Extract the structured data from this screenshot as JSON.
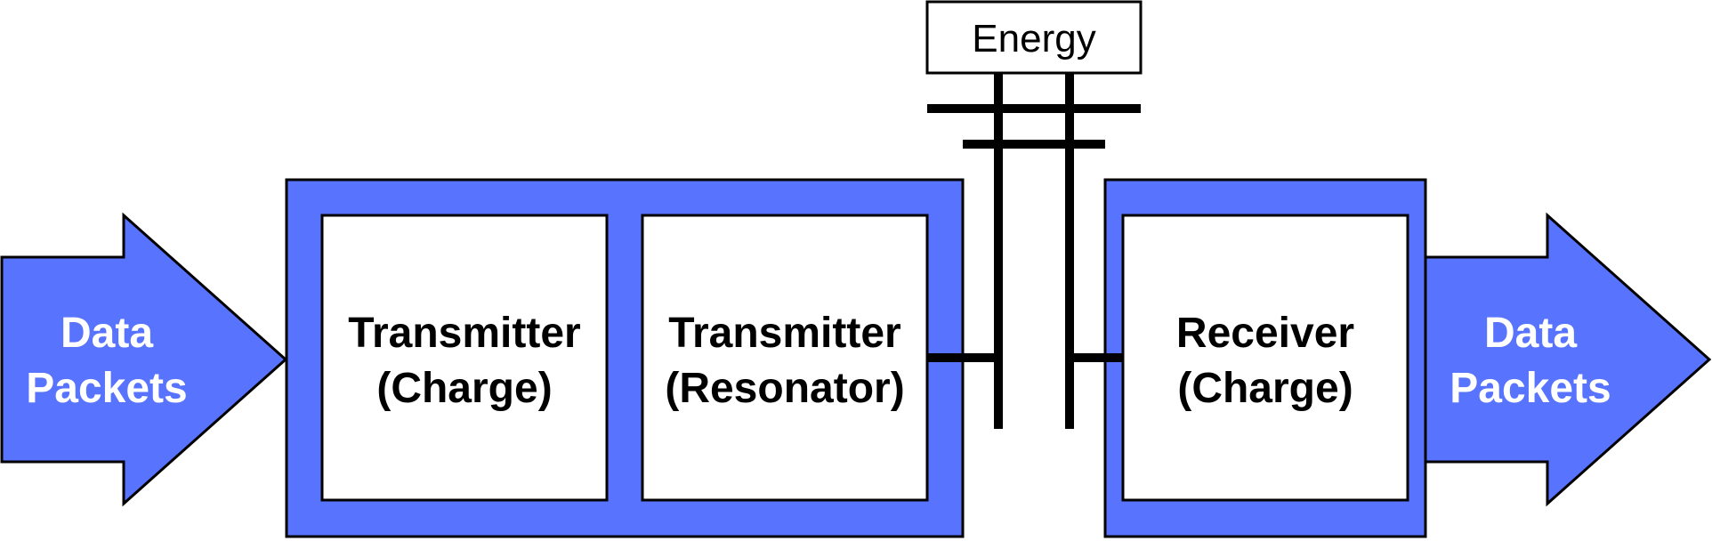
{
  "colors": {
    "accent": "#5874fe",
    "stroke": "#000000",
    "box_fill": "#ffffff",
    "arrow_text": "#ffffff",
    "box_text": "#000000"
  },
  "input_arrow": {
    "line1": "Data",
    "line2": "Packets"
  },
  "output_arrow": {
    "line1": "Data",
    "line2": "Packets"
  },
  "transmitter_charge": {
    "line1": "Transmitter",
    "line2": "(Charge)"
  },
  "transmitter_resonator": {
    "line1": "Transmitter",
    "line2": "(Resonator)"
  },
  "receiver_charge": {
    "line1": "Receiver",
    "line2": "(Charge)"
  },
  "energy_label": "Energy"
}
